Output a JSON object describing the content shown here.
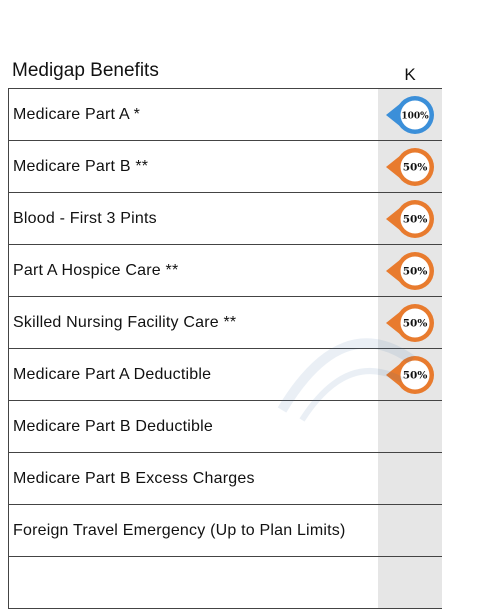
{
  "header": {
    "title": "Medigap Benefits",
    "plan": "K"
  },
  "colors": {
    "full": "#3b8fd9",
    "partial": "#e87b2e",
    "cell_bg": "#e6e6e6"
  },
  "rows": [
    {
      "label": "Medicare Part A *",
      "coverage": "100%",
      "level": "full"
    },
    {
      "label": "Medicare Part B **",
      "coverage": "50%",
      "level": "partial"
    },
    {
      "label": "Blood - First 3 Pints",
      "coverage": "50%",
      "level": "partial"
    },
    {
      "label": "Part A Hospice Care **",
      "coverage": "50%",
      "level": "partial"
    },
    {
      "label": "Skilled Nursing Facility Care **",
      "coverage": "50%",
      "level": "partial"
    },
    {
      "label": "Medicare Part A Deductible",
      "coverage": "50%",
      "level": "partial"
    },
    {
      "label": "Medicare Part B Deductible",
      "coverage": "",
      "level": "none"
    },
    {
      "label": "Medicare Part B Excess Charges",
      "coverage": "",
      "level": "none"
    },
    {
      "label": "Foreign Travel Emergency (Up to Plan Limits)",
      "coverage": "",
      "level": "none"
    },
    {
      "label": "",
      "coverage": "",
      "level": "none"
    }
  ]
}
